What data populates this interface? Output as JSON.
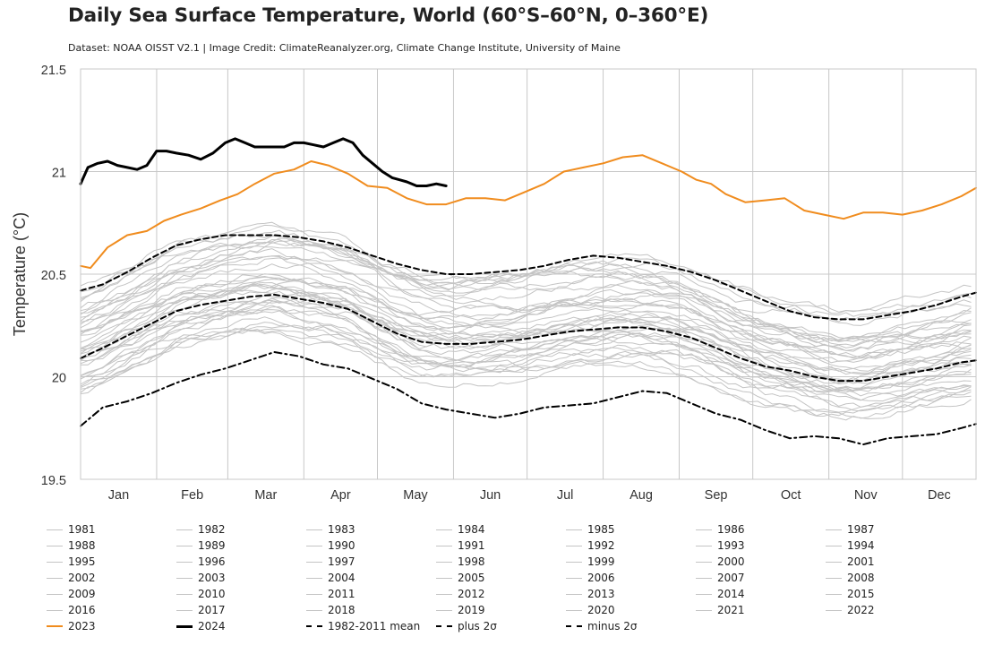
{
  "title": "Daily Sea Surface Temperature, World (60°S–60°N, 0–360°E)",
  "subtitle": "Dataset: NOAA OISST V2.1 | Image Credit: ClimateReanalyzer.org, Climate Change Institute, University of Maine",
  "colors": {
    "background": "#ffffff",
    "grid": "#c8c8c8",
    "gray_years": "#c4c4c4",
    "y2023": "#f08c1e",
    "y2024": "#000000",
    "stats": "#000000"
  },
  "chart_data": {
    "type": "line",
    "title": "Daily Sea Surface Temperature, World (60°S–60°N, 0–360°E)",
    "xlabel": "",
    "ylabel": "Temperature (°C)",
    "ylim": [
      19.5,
      21.5
    ],
    "xlim_day_of_year": [
      1,
      366
    ],
    "grid": true,
    "legend_position": "bottom",
    "x_ticks": [
      {
        "label": "Jan",
        "day": 1
      },
      {
        "label": "Feb",
        "day": 32
      },
      {
        "label": "Mar",
        "day": 61
      },
      {
        "label": "Apr",
        "day": 92
      },
      {
        "label": "May",
        "day": 122
      },
      {
        "label": "Jun",
        "day": 153
      },
      {
        "label": "Jul",
        "day": 183
      },
      {
        "label": "Aug",
        "day": 214
      },
      {
        "label": "Sep",
        "day": 245
      },
      {
        "label": "Oct",
        "day": 275
      },
      {
        "label": "Nov",
        "day": 306
      },
      {
        "label": "Dec",
        "day": 336
      }
    ],
    "y_ticks": [
      19.5,
      20,
      20.5,
      21,
      21.5
    ],
    "gray_years": [
      "1981",
      "1982",
      "1983",
      "1984",
      "1985",
      "1986",
      "1987",
      "1988",
      "1989",
      "1990",
      "1991",
      "1992",
      "1993",
      "1994",
      "1995",
      "1996",
      "1997",
      "1998",
      "1999",
      "2000",
      "2001",
      "2002",
      "2003",
      "2004",
      "2005",
      "2006",
      "2007",
      "2008",
      "2009",
      "2010",
      "2011",
      "2012",
      "2013",
      "2014",
      "2015",
      "2016",
      "2017",
      "2018",
      "2019",
      "2020",
      "2021",
      "2022"
    ],
    "highlight_series": [
      {
        "name": "2023",
        "color": "#f08c1e",
        "dash": "solid",
        "width": 2,
        "x": [
          1,
          5,
          12,
          20,
          28,
          35,
          42,
          50,
          58,
          65,
          72,
          80,
          88,
          95,
          102,
          110,
          118,
          126,
          134,
          142,
          150,
          158,
          166,
          174,
          182,
          190,
          198,
          206,
          214,
          222,
          230,
          238,
          246,
          252,
          258,
          264,
          272,
          280,
          288,
          296,
          304,
          312,
          320,
          328,
          336,
          344,
          352,
          360,
          366
        ],
        "y": [
          20.54,
          20.53,
          20.63,
          20.69,
          20.71,
          20.76,
          20.79,
          20.82,
          20.86,
          20.89,
          20.94,
          20.99,
          21.01,
          21.05,
          21.03,
          20.99,
          20.93,
          20.92,
          20.87,
          20.84,
          20.84,
          20.87,
          20.87,
          20.86,
          20.9,
          20.94,
          21.0,
          21.02,
          21.04,
          21.07,
          21.08,
          21.04,
          21.0,
          20.96,
          20.94,
          20.89,
          20.85,
          20.86,
          20.87,
          20.81,
          20.79,
          20.77,
          20.8,
          20.8,
          20.79,
          20.81,
          20.84,
          20.88,
          20.92
        ]
      },
      {
        "name": "2024",
        "color": "#000000",
        "dash": "solid",
        "width": 3,
        "x": [
          1,
          4,
          8,
          12,
          16,
          20,
          24,
          28,
          32,
          36,
          40,
          45,
          50,
          55,
          60,
          64,
          68,
          72,
          76,
          80,
          84,
          88,
          92,
          96,
          100,
          104,
          108,
          112,
          116,
          120,
          124,
          128,
          131,
          134,
          138,
          142,
          146,
          150
        ],
        "y": [
          20.94,
          21.02,
          21.04,
          21.05,
          21.03,
          21.02,
          21.01,
          21.03,
          21.1,
          21.1,
          21.09,
          21.08,
          21.06,
          21.09,
          21.14,
          21.16,
          21.14,
          21.12,
          21.12,
          21.12,
          21.12,
          21.14,
          21.14,
          21.13,
          21.12,
          21.14,
          21.16,
          21.14,
          21.08,
          21.04,
          21.0,
          20.97,
          20.96,
          20.95,
          20.93,
          20.93,
          20.94,
          20.93
        ]
      },
      {
        "name": "1982-2011 mean",
        "color": "#000000",
        "dash": "dash",
        "width": 2,
        "x": [
          1,
          10,
          20,
          30,
          40,
          50,
          60,
          70,
          80,
          90,
          100,
          110,
          120,
          130,
          140,
          150,
          160,
          170,
          180,
          190,
          200,
          210,
          220,
          230,
          240,
          250,
          260,
          270,
          280,
          290,
          300,
          310,
          320,
          330,
          340,
          350,
          360,
          366
        ],
        "y": [
          20.09,
          20.14,
          20.2,
          20.26,
          20.32,
          20.35,
          20.37,
          20.39,
          20.4,
          20.38,
          20.36,
          20.33,
          20.27,
          20.21,
          20.17,
          20.16,
          20.16,
          20.17,
          20.18,
          20.2,
          20.22,
          20.23,
          20.24,
          20.24,
          20.22,
          20.19,
          20.14,
          20.09,
          20.05,
          20.03,
          20.0,
          19.98,
          19.98,
          20.0,
          20.02,
          20.04,
          20.07,
          20.08
        ]
      },
      {
        "name": "plus 2σ",
        "color": "#000000",
        "dash": "dash",
        "width": 2,
        "x": [
          1,
          10,
          20,
          30,
          40,
          50,
          60,
          70,
          80,
          90,
          100,
          110,
          120,
          130,
          140,
          150,
          160,
          170,
          180,
          190,
          200,
          210,
          220,
          230,
          240,
          250,
          260,
          270,
          280,
          290,
          300,
          310,
          320,
          330,
          340,
          350,
          360,
          366
        ],
        "y": [
          20.42,
          20.45,
          20.51,
          20.58,
          20.64,
          20.67,
          20.69,
          20.69,
          20.69,
          20.68,
          20.66,
          20.63,
          20.59,
          20.55,
          20.52,
          20.5,
          20.5,
          20.51,
          20.52,
          20.54,
          20.57,
          20.59,
          20.58,
          20.56,
          20.54,
          20.51,
          20.47,
          20.42,
          20.37,
          20.32,
          20.29,
          20.28,
          20.28,
          20.3,
          20.32,
          20.35,
          20.39,
          20.41
        ]
      },
      {
        "name": "minus 2σ",
        "color": "#000000",
        "dash": "dashdot",
        "width": 2,
        "x": [
          1,
          10,
          20,
          30,
          40,
          50,
          60,
          70,
          80,
          90,
          100,
          110,
          120,
          130,
          140,
          150,
          160,
          170,
          180,
          190,
          200,
          210,
          220,
          230,
          240,
          250,
          260,
          270,
          280,
          290,
          300,
          310,
          320,
          330,
          340,
          350,
          360,
          366
        ],
        "y": [
          19.76,
          19.85,
          19.88,
          19.92,
          19.97,
          20.01,
          20.04,
          20.08,
          20.12,
          20.1,
          20.06,
          20.04,
          19.99,
          19.94,
          19.87,
          19.84,
          19.82,
          19.8,
          19.82,
          19.85,
          19.86,
          19.87,
          19.9,
          19.93,
          19.92,
          19.87,
          19.82,
          19.79,
          19.74,
          19.7,
          19.71,
          19.7,
          19.67,
          19.7,
          19.71,
          19.72,
          19.75,
          19.77
        ]
      }
    ]
  },
  "legend": [
    {
      "label": "1981",
      "kind": "gray"
    },
    {
      "label": "1982",
      "kind": "gray"
    },
    {
      "label": "1983",
      "kind": "gray"
    },
    {
      "label": "1984",
      "kind": "gray"
    },
    {
      "label": "1985",
      "kind": "gray"
    },
    {
      "label": "1986",
      "kind": "gray"
    },
    {
      "label": "1987",
      "kind": "gray"
    },
    {
      "label": "1988",
      "kind": "gray"
    },
    {
      "label": "1989",
      "kind": "gray"
    },
    {
      "label": "1990",
      "kind": "gray"
    },
    {
      "label": "1991",
      "kind": "gray"
    },
    {
      "label": "1992",
      "kind": "gray"
    },
    {
      "label": "1993",
      "kind": "gray"
    },
    {
      "label": "1994",
      "kind": "gray"
    },
    {
      "label": "1995",
      "kind": "gray"
    },
    {
      "label": "1996",
      "kind": "gray"
    },
    {
      "label": "1997",
      "kind": "gray"
    },
    {
      "label": "1998",
      "kind": "gray"
    },
    {
      "label": "1999",
      "kind": "gray"
    },
    {
      "label": "2000",
      "kind": "gray"
    },
    {
      "label": "2001",
      "kind": "gray"
    },
    {
      "label": "2002",
      "kind": "gray"
    },
    {
      "label": "2003",
      "kind": "gray"
    },
    {
      "label": "2004",
      "kind": "gray"
    },
    {
      "label": "2005",
      "kind": "gray"
    },
    {
      "label": "2006",
      "kind": "gray"
    },
    {
      "label": "2007",
      "kind": "gray"
    },
    {
      "label": "2008",
      "kind": "gray"
    },
    {
      "label": "2009",
      "kind": "gray"
    },
    {
      "label": "2010",
      "kind": "gray"
    },
    {
      "label": "2011",
      "kind": "gray"
    },
    {
      "label": "2012",
      "kind": "gray"
    },
    {
      "label": "2013",
      "kind": "gray"
    },
    {
      "label": "2014",
      "kind": "gray"
    },
    {
      "label": "2015",
      "kind": "gray"
    },
    {
      "label": "2016",
      "kind": "gray"
    },
    {
      "label": "2017",
      "kind": "gray"
    },
    {
      "label": "2018",
      "kind": "gray"
    },
    {
      "label": "2019",
      "kind": "gray"
    },
    {
      "label": "2020",
      "kind": "gray"
    },
    {
      "label": "2021",
      "kind": "gray"
    },
    {
      "label": "2022",
      "kind": "gray"
    },
    {
      "label": "2023",
      "kind": "y2023"
    },
    {
      "label": "2024",
      "kind": "y2024"
    },
    {
      "label": "1982-2011 mean",
      "kind": "mean"
    },
    {
      "label": "plus 2σ",
      "kind": "plus"
    },
    {
      "label": "minus 2σ",
      "kind": "minus"
    }
  ]
}
